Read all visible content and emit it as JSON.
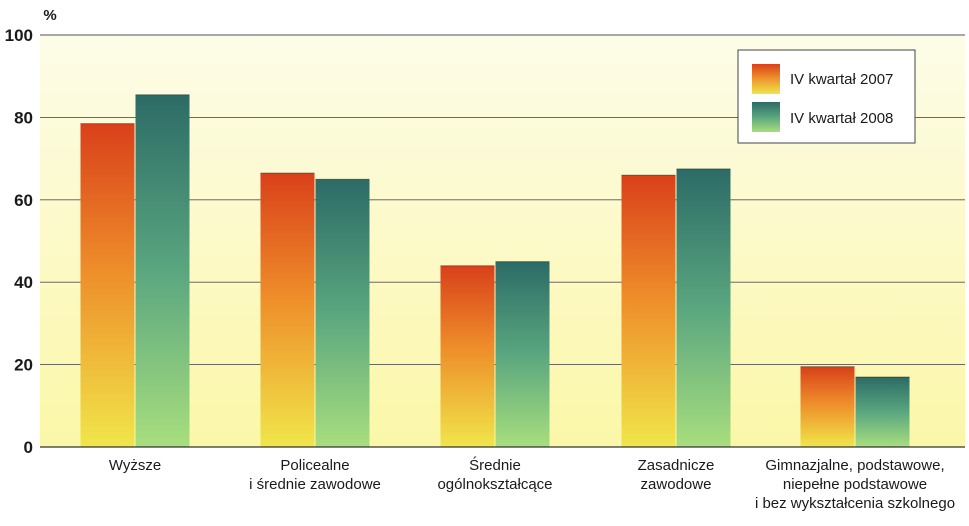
{
  "chart_data": {
    "type": "bar",
    "title": "",
    "xlabel": "",
    "ylabel": "%",
    "ylim": [
      0,
      100
    ],
    "yticks": [
      0,
      20,
      40,
      60,
      80,
      100
    ],
    "grid": true,
    "legend_position": "top-right",
    "categories": [
      [
        "Wyższe"
      ],
      [
        "Policealne",
        "i średnie zawodowe"
      ],
      [
        "Średnie",
        "ogólnokształcące"
      ],
      [
        "Zasadnicze",
        "zawodowe"
      ],
      [
        "Gimnazjalne, podstawowe,",
        "niepełne podstawowe",
        "i bez wykształcenia szkolnego"
      ]
    ],
    "series": [
      {
        "name": "IV kwartał 2007",
        "values": [
          78.5,
          66.5,
          44,
          66,
          19.5
        ]
      },
      {
        "name": "IV kwartał 2008",
        "values": [
          85.5,
          65,
          45,
          67.5,
          17
        ]
      }
    ],
    "colors": {
      "series1_top": "#d9401a",
      "series1_bottom": "#f0e64a",
      "series2_top": "#2c6b66",
      "series2_bottom": "#a8de7e",
      "plot_top": "#fdfce8",
      "plot_bottom": "#fbf7a8",
      "grid": "#555555"
    }
  }
}
